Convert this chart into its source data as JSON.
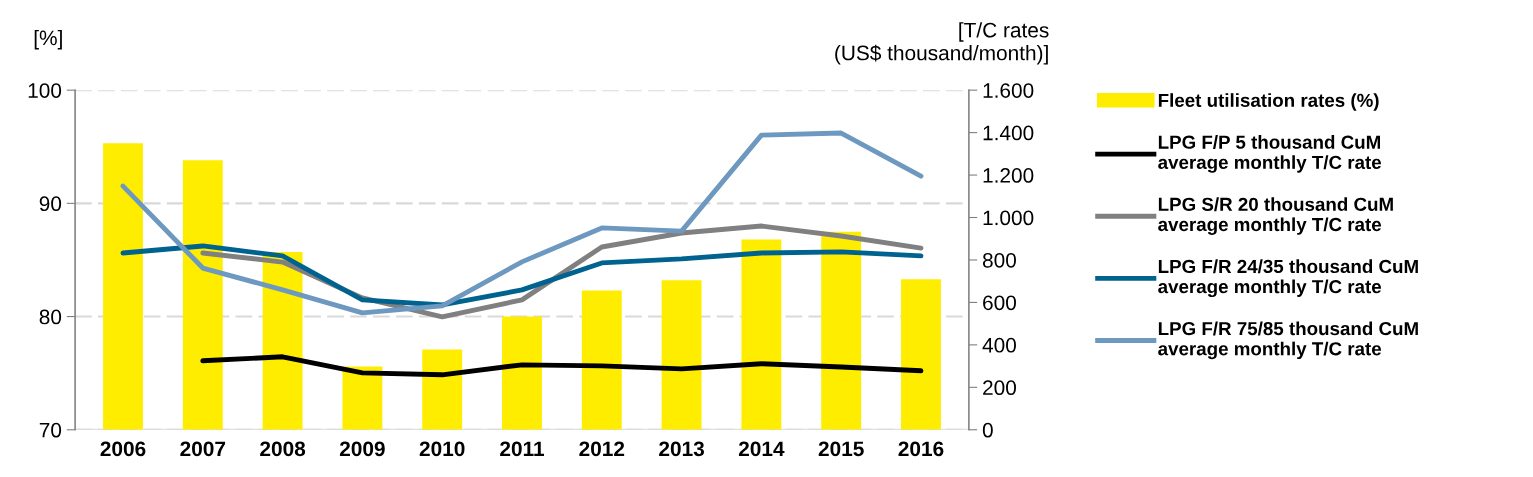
{
  "chart_data": {
    "type": "bar",
    "ylabel": "[%]",
    "y2label": "[T/C rates\n(US$ thousand/month)]",
    "categories": [
      "2006",
      "2007",
      "2008",
      "2009",
      "2010",
      "2011",
      "2012",
      "2013",
      "2014",
      "2015",
      "2016"
    ],
    "ylim": [
      70,
      100
    ],
    "yticks": [
      70,
      80,
      90,
      100
    ],
    "y2lim": [
      0,
      1600
    ],
    "y2ticks": [
      {
        "value": 0,
        "label": "0"
      },
      {
        "value": 200,
        "label": "200"
      },
      {
        "value": 400,
        "label": "400"
      },
      {
        "value": 600,
        "label": "600"
      },
      {
        "value": 800,
        "label": "800"
      },
      {
        "value": 1000,
        "label": "1.000"
      },
      {
        "value": 1200,
        "label": "1.200"
      },
      {
        "value": 1400,
        "label": "1.400"
      },
      {
        "value": 1600,
        "label": "1.600"
      }
    ],
    "grid": "y",
    "legend": "right",
    "series": [
      {
        "name": "Fleet utilisation rates (%)",
        "color": "#ffed00",
        "values": [
          95.3,
          93.8,
          85.7,
          75.6,
          77.1,
          80.0,
          82.3,
          83.2,
          86.8,
          87.5,
          83.3
        ]
      },
      {
        "name": "LPG F/P 5 thousand CuM\naverage monthly T/C rate",
        "type": "line",
        "axis": "y2",
        "color": "#000000",
        "values": [
          null,
          325,
          344,
          268,
          259,
          306,
          301,
          287,
          311,
          296,
          278
        ]
      },
      {
        "name": "LPG S/R 20 thousand CuM\naverage monthly T/C rate",
        "type": "line",
        "axis": "y2",
        "color": "#808080",
        "values": [
          null,
          833,
          790,
          621,
          532,
          612,
          861,
          927,
          960,
          913,
          856
        ]
      },
      {
        "name": "LPG F/R 24/35 thousand CuM\naverage monthly T/C rate",
        "type": "line",
        "axis": "y2",
        "color": "#00628f",
        "values": [
          833,
          866,
          819,
          612,
          588,
          659,
          786,
          805,
          833,
          838,
          819
        ]
      },
      {
        "name": "LPG F/R 75/85 thousand CuM\naverage monthly T/C rate",
        "type": "line",
        "axis": "y2",
        "color": "#6d98bf",
        "values": [
          1148,
          762,
          659,
          551,
          584,
          791,
          951,
          936,
          1388,
          1398,
          1195
        ]
      }
    ]
  }
}
